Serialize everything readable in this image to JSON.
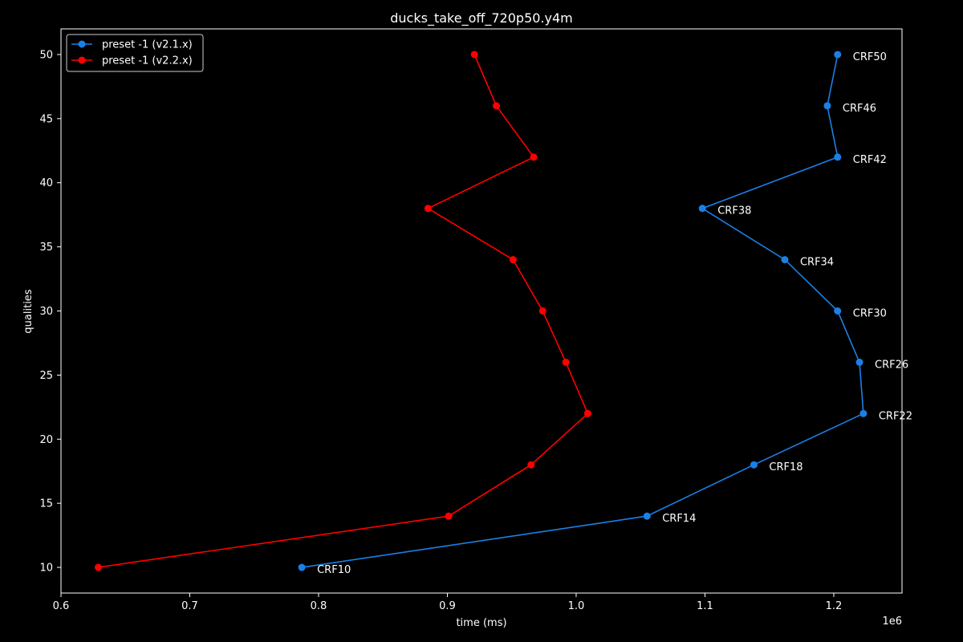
{
  "chart_data": {
    "type": "line",
    "title": "ducks_take_off_720p50.y4m",
    "xlabel": "time (ms)",
    "ylabel": "qualities",
    "x_offset_label": "1e6",
    "xlim": [
      0.6,
      1.253
    ],
    "ylim": [
      8,
      52
    ],
    "x_ticks": [
      0.6,
      0.7,
      0.8,
      0.9,
      1.0,
      1.1,
      1.2
    ],
    "x_tick_labels": [
      "0.6",
      "0.7",
      "0.8",
      "0.9",
      "1.0",
      "1.1",
      "1.2"
    ],
    "y_ticks": [
      10,
      15,
      20,
      25,
      30,
      35,
      40,
      45,
      50
    ],
    "y_tick_labels": [
      "10",
      "15",
      "20",
      "25",
      "30",
      "35",
      "40",
      "45",
      "50"
    ],
    "grid": false,
    "legend_position": "top-left",
    "series": [
      {
        "name": "preset -1 (v2.1.x)",
        "color": "#1a80e6",
        "x": [
          0.787,
          1.055,
          1.138,
          1.223,
          1.22,
          1.203,
          1.162,
          1.098,
          1.203,
          1.195,
          1.203
        ],
        "y": [
          10,
          14,
          18,
          22,
          26,
          30,
          34,
          38,
          42,
          46,
          50
        ],
        "point_labels": [
          "CRF10",
          "CRF14",
          "CRF18",
          "CRF22",
          "CRF26",
          "CRF30",
          "CRF34",
          "CRF38",
          "CRF42",
          "CRF46",
          "CRF50"
        ]
      },
      {
        "name": "preset -1 (v2.2.x)",
        "color": "#ff0000",
        "x": [
          0.629,
          0.901,
          0.965,
          1.009,
          0.992,
          0.974,
          0.951,
          0.885,
          0.967,
          0.938,
          0.921
        ],
        "y": [
          10,
          14,
          18,
          22,
          26,
          30,
          34,
          38,
          42,
          46,
          50
        ]
      }
    ]
  }
}
